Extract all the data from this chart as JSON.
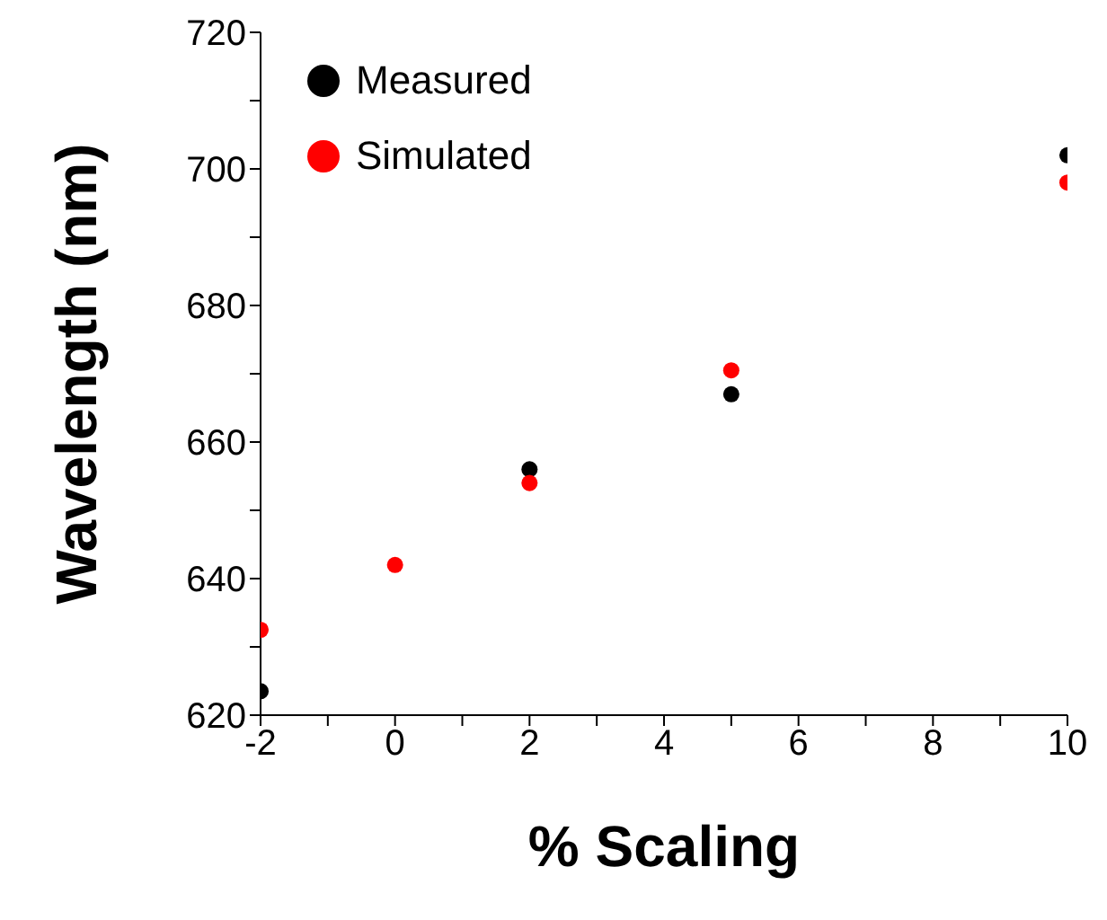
{
  "chart_data": {
    "type": "scatter",
    "xlabel": "% Scaling",
    "ylabel": "Wavelength (nm)",
    "x": [
      -2,
      0,
      2,
      5,
      10
    ],
    "series": [
      {
        "name": "Measured",
        "color": "#000000",
        "values": [
          623.5,
          null,
          656,
          667,
          702
        ]
      },
      {
        "name": "Simulated",
        "color": "#ff0000",
        "values": [
          632.5,
          642,
          654,
          670.5,
          698
        ]
      }
    ],
    "xlim": [
      -2,
      10
    ],
    "xticks": [
      -2,
      {
        "value": -1,
        "label": null
      },
      0,
      {
        "value": 1,
        "label": null
      },
      2,
      {
        "value": 3,
        "label": null
      },
      4,
      {
        "value": 5,
        "label": null
      },
      6,
      {
        "value": 7,
        "label": null
      },
      8,
      {
        "value": 9,
        "label": null
      },
      10
    ],
    "ylim": [
      620,
      720
    ],
    "yticks": [
      620,
      {
        "value": 630,
        "label": null
      },
      640,
      {
        "value": 650,
        "label": null
      },
      660,
      {
        "value": 670,
        "label": null
      },
      680,
      {
        "value": 690,
        "label": null
      },
      700,
      {
        "value": 710,
        "label": null
      },
      720
    ],
    "grid": false,
    "legend": "top left",
    "marker": "circle"
  }
}
